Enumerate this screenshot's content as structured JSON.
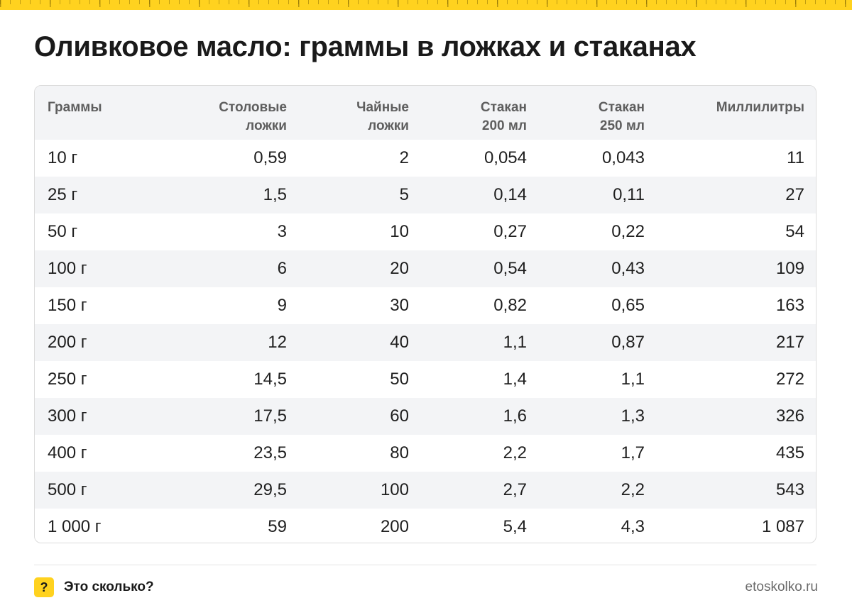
{
  "title": "Оливковое масло: граммы в ложках и стаканах",
  "table": {
    "headers": [
      {
        "line1": "Граммы",
        "line2": ""
      },
      {
        "line1": "Столовые",
        "line2": "ложки"
      },
      {
        "line1": "Чайные",
        "line2": "ложки"
      },
      {
        "line1": "Стакан",
        "line2": "200 мл"
      },
      {
        "line1": "Стакан",
        "line2": "250 мл"
      },
      {
        "line1": "Миллилитры",
        "line2": ""
      }
    ],
    "rows": [
      [
        "10 г",
        "0,59",
        "2",
        "0,054",
        "0,043",
        "11"
      ],
      [
        "25 г",
        "1,5",
        "5",
        "0,14",
        "0,11",
        "27"
      ],
      [
        "50 г",
        "3",
        "10",
        "0,27",
        "0,22",
        "54"
      ],
      [
        "100 г",
        "6",
        "20",
        "0,54",
        "0,43",
        "109"
      ],
      [
        "150 г",
        "9",
        "30",
        "0,82",
        "0,65",
        "163"
      ],
      [
        "200 г",
        "12",
        "40",
        "1,1",
        "0,87",
        "217"
      ],
      [
        "250 г",
        "14,5",
        "50",
        "1,4",
        "1,1",
        "272"
      ],
      [
        "300 г",
        "17,5",
        "60",
        "1,6",
        "1,3",
        "326"
      ],
      [
        "400 г",
        "23,5",
        "80",
        "2,2",
        "1,7",
        "435"
      ],
      [
        "500 г",
        "29,5",
        "100",
        "2,7",
        "2,2",
        "543"
      ],
      [
        "1 000 г",
        "59",
        "200",
        "5,4",
        "4,3",
        "1 087"
      ]
    ]
  },
  "footer": {
    "icon": "question-mark-icon",
    "icon_glyph": "?",
    "brand": "Это сколько?",
    "site": "etoskolko.ru"
  },
  "colors": {
    "accent": "#ffd21f",
    "header_bg": "#f3f4f6",
    "stripe_bg": "#f3f4f6"
  }
}
